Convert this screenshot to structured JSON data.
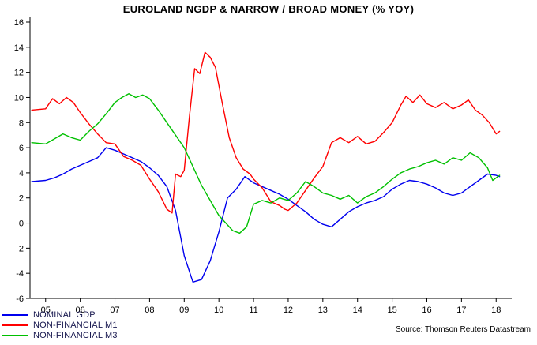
{
  "source": "Source: Thomson Reuters Datastream",
  "chart_data": {
    "type": "line",
    "title": "EUROLAND NGDP & NARROW / BROAD MONEY (% YOY)",
    "xlabel": "",
    "ylabel": "",
    "ylim": [
      -6,
      16
    ],
    "ytick_step": 2,
    "xlim": [
      2004.55,
      2018.45
    ],
    "grid": false,
    "zero_line": true,
    "legend_position": "bottom-left",
    "x_ticks": [
      {
        "x": 2005,
        "label": "05"
      },
      {
        "x": 2006,
        "label": "06"
      },
      {
        "x": 2007,
        "label": "07"
      },
      {
        "x": 2008,
        "label": "08"
      },
      {
        "x": 2009,
        "label": "09"
      },
      {
        "x": 2010,
        "label": "10"
      },
      {
        "x": 2011,
        "label": "11"
      },
      {
        "x": 2012,
        "label": "12"
      },
      {
        "x": 2013,
        "label": "13"
      },
      {
        "x": 2014,
        "label": "14"
      },
      {
        "x": 2015,
        "label": "15"
      },
      {
        "x": 2016,
        "label": "16"
      },
      {
        "x": 2017,
        "label": "17"
      },
      {
        "x": 2018,
        "label": "18"
      }
    ],
    "series": [
      {
        "name": "NOMINAL GDP",
        "color": "#0000ee",
        "x": [
          2004.6,
          2005.0,
          2005.25,
          2005.5,
          2005.75,
          2006.0,
          2006.25,
          2006.5,
          2006.75,
          2007.0,
          2007.25,
          2007.5,
          2007.75,
          2008.0,
          2008.25,
          2008.5,
          2008.75,
          2009.0,
          2009.25,
          2009.5,
          2009.75,
          2010.0,
          2010.25,
          2010.5,
          2010.75,
          2011.0,
          2011.25,
          2011.5,
          2011.75,
          2012.0,
          2012.25,
          2012.5,
          2012.75,
          2013.0,
          2013.25,
          2013.5,
          2013.75,
          2014.0,
          2014.25,
          2014.5,
          2014.75,
          2015.0,
          2015.25,
          2015.5,
          2015.75,
          2016.0,
          2016.25,
          2016.5,
          2016.75,
          2017.0,
          2017.25,
          2017.5,
          2017.75,
          2018.0,
          2018.1
        ],
        "y": [
          3.3,
          3.4,
          3.6,
          3.9,
          4.3,
          4.6,
          4.9,
          5.2,
          6.0,
          5.8,
          5.5,
          5.2,
          4.9,
          4.4,
          3.8,
          2.9,
          1.0,
          -2.6,
          -4.7,
          -4.5,
          -3.0,
          -0.7,
          2.0,
          2.7,
          3.7,
          3.2,
          2.9,
          2.6,
          2.3,
          1.9,
          1.4,
          0.9,
          0.3,
          -0.1,
          -0.3,
          0.3,
          0.9,
          1.3,
          1.6,
          1.8,
          2.1,
          2.7,
          3.1,
          3.4,
          3.3,
          3.1,
          2.8,
          2.4,
          2.2,
          2.4,
          2.9,
          3.4,
          3.9,
          3.8,
          3.7
        ]
      },
      {
        "name": "NON-FINANCIAL M1",
        "color": "#ff0000",
        "x": [
          2004.6,
          2005.0,
          2005.2,
          2005.4,
          2005.6,
          2005.8,
          2006.0,
          2006.25,
          2006.5,
          2006.75,
          2007.0,
          2007.25,
          2007.5,
          2007.75,
          2008.0,
          2008.25,
          2008.5,
          2008.65,
          2008.75,
          2008.9,
          2009.0,
          2009.15,
          2009.3,
          2009.45,
          2009.6,
          2009.75,
          2009.9,
          2010.1,
          2010.3,
          2010.5,
          2010.7,
          2010.9,
          2011.0,
          2011.25,
          2011.5,
          2011.75,
          2011.9,
          2012.0,
          2012.25,
          2012.5,
          2012.75,
          2013.0,
          2013.25,
          2013.5,
          2013.75,
          2014.0,
          2014.25,
          2014.5,
          2014.75,
          2015.0,
          2015.25,
          2015.4,
          2015.6,
          2015.8,
          2016.0,
          2016.25,
          2016.5,
          2016.75,
          2017.0,
          2017.2,
          2017.4,
          2017.6,
          2017.8,
          2018.0,
          2018.1
        ],
        "y": [
          9.0,
          9.1,
          9.9,
          9.5,
          10.0,
          9.6,
          8.8,
          7.9,
          7.1,
          6.4,
          6.3,
          5.3,
          5.0,
          4.6,
          3.5,
          2.5,
          1.1,
          0.8,
          3.9,
          3.7,
          4.2,
          8.5,
          12.3,
          11.9,
          13.6,
          13.2,
          12.4,
          9.5,
          6.8,
          5.2,
          4.3,
          3.9,
          3.5,
          2.8,
          1.7,
          1.4,
          1.1,
          1.0,
          1.6,
          2.6,
          3.6,
          4.5,
          6.4,
          6.8,
          6.4,
          6.9,
          6.3,
          6.5,
          7.2,
          8.0,
          9.4,
          10.1,
          9.6,
          10.2,
          9.5,
          9.2,
          9.6,
          9.1,
          9.4,
          9.8,
          9.0,
          8.6,
          8.0,
          7.1,
          7.3
        ]
      },
      {
        "name": "NON-FINANCIAL M3",
        "color": "#00c000",
        "x": [
          2004.6,
          2005.0,
          2005.25,
          2005.5,
          2005.75,
          2006.0,
          2006.25,
          2006.5,
          2006.75,
          2007.0,
          2007.2,
          2007.4,
          2007.6,
          2007.8,
          2008.0,
          2008.25,
          2008.5,
          2008.75,
          2009.0,
          2009.25,
          2009.5,
          2009.75,
          2010.0,
          2010.2,
          2010.4,
          2010.6,
          2010.8,
          2011.0,
          2011.25,
          2011.5,
          2011.75,
          2012.0,
          2012.25,
          2012.5,
          2012.75,
          2013.0,
          2013.25,
          2013.5,
          2013.75,
          2014.0,
          2014.25,
          2014.5,
          2014.75,
          2015.0,
          2015.25,
          2015.5,
          2015.75,
          2016.0,
          2016.25,
          2016.5,
          2016.75,
          2017.0,
          2017.25,
          2017.5,
          2017.75,
          2017.9,
          2018.1
        ],
        "y": [
          6.4,
          6.3,
          6.7,
          7.1,
          6.8,
          6.6,
          7.3,
          7.9,
          8.7,
          9.6,
          10.0,
          10.3,
          10.0,
          10.2,
          9.9,
          9.0,
          8.0,
          7.0,
          6.0,
          4.5,
          3.0,
          1.8,
          0.6,
          0.0,
          -0.6,
          -0.8,
          -0.3,
          1.5,
          1.8,
          1.6,
          2.0,
          1.8,
          2.4,
          3.3,
          2.9,
          2.4,
          2.2,
          1.9,
          2.2,
          1.6,
          2.1,
          2.4,
          2.9,
          3.5,
          4.0,
          4.3,
          4.5,
          4.8,
          5.0,
          4.7,
          5.2,
          5.0,
          5.6,
          5.2,
          4.4,
          3.4,
          3.8
        ]
      }
    ]
  }
}
